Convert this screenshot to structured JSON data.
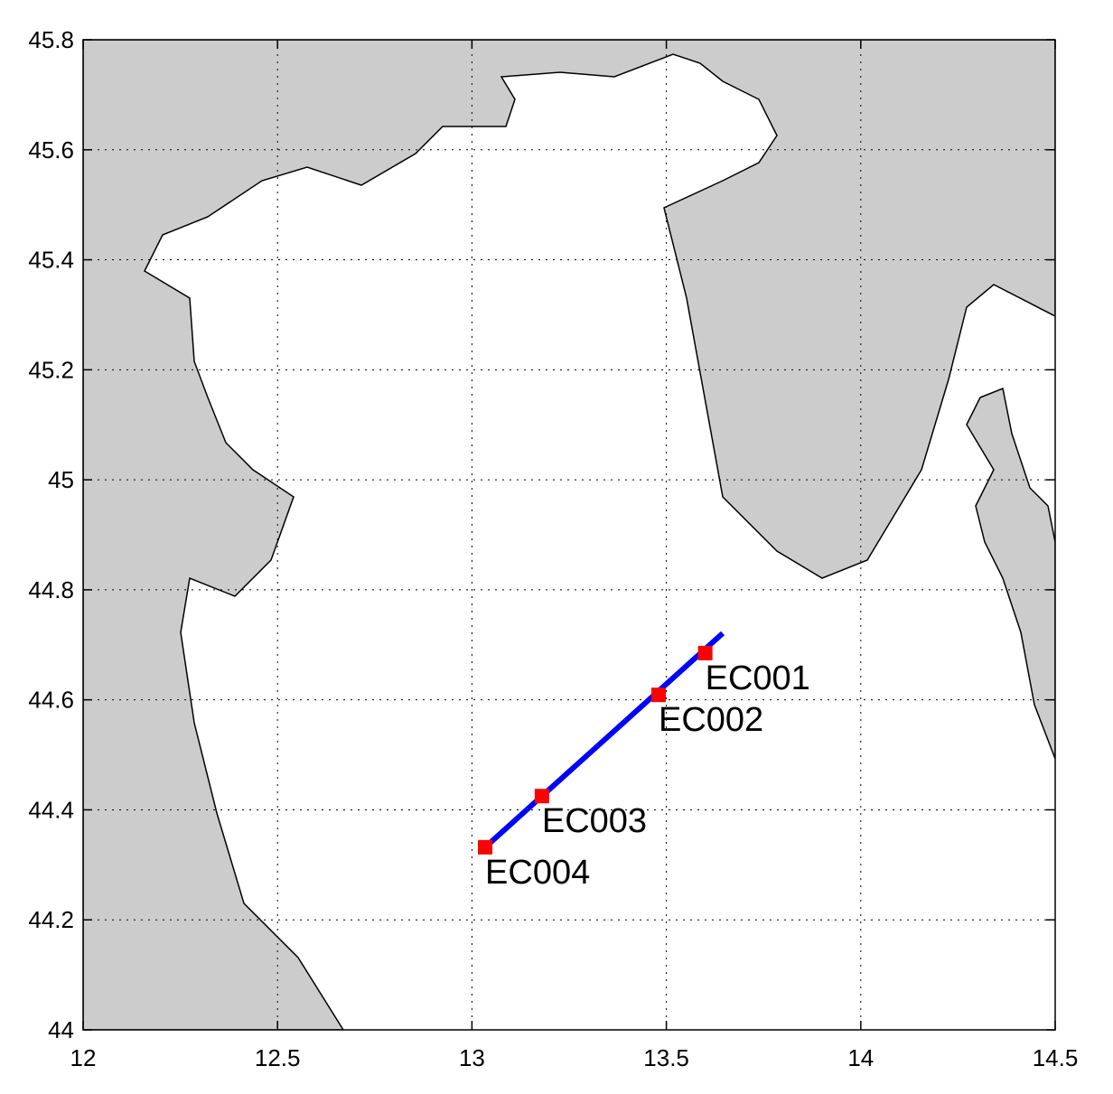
{
  "chart_data": {
    "type": "scatter",
    "xlim": [
      12,
      14.5
    ],
    "xticks": [
      12,
      12.5,
      13,
      13.5,
      14,
      14.5
    ],
    "ylim": [
      44,
      45.8
    ],
    "yticks": [
      44,
      44.2,
      44.4,
      44.6,
      44.8,
      45,
      45.2,
      45.4,
      45.6,
      45.8
    ],
    "grid": true,
    "transect": {
      "x": [
        13.034,
        13.645
      ],
      "y": [
        44.332,
        44.721
      ],
      "color": "#0000ff"
    },
    "stations": {
      "labels": [
        "EC001",
        "EC002",
        "EC003",
        "EC004"
      ],
      "x": [
        13.6,
        13.48,
        13.18,
        13.034
      ],
      "y": [
        44.685,
        44.609,
        44.425,
        44.332
      ],
      "color": "#ff0000"
    }
  }
}
